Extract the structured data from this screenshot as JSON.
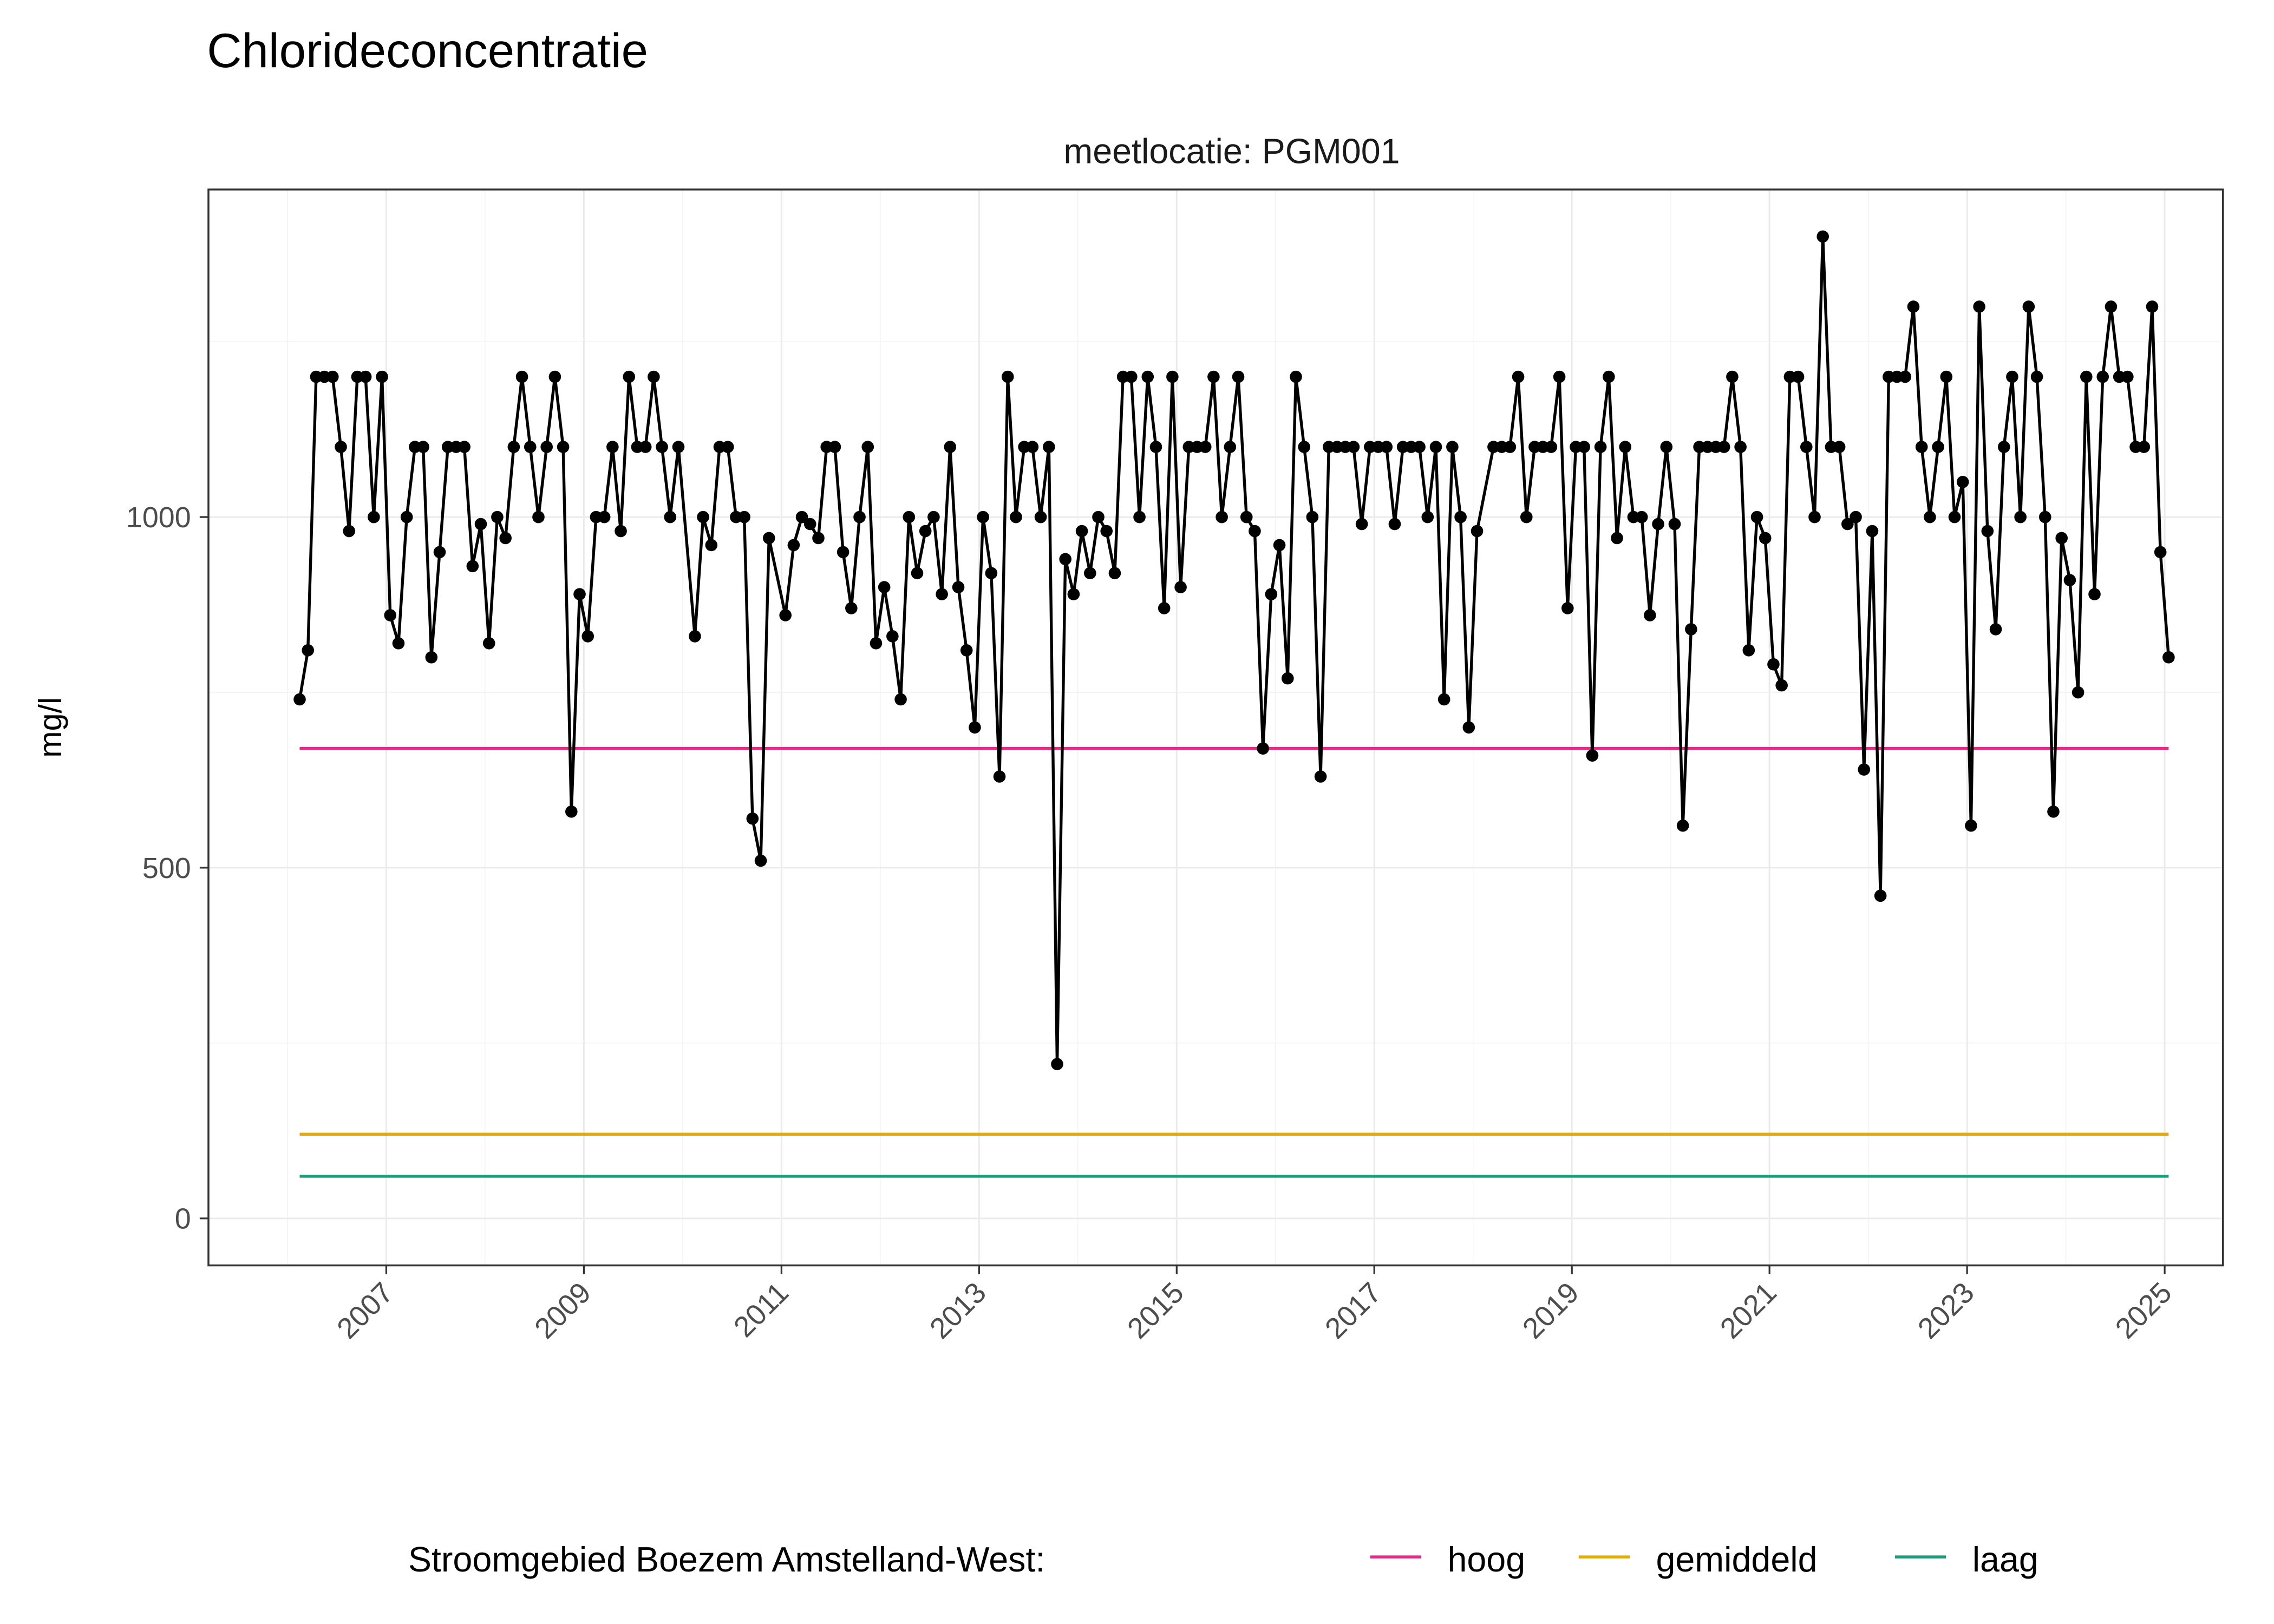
{
  "chart_data": {
    "type": "line",
    "title": "Chlorideconcentratie",
    "facet_label": "meetlocatie: PGM001",
    "xlabel": "",
    "ylabel": "mg/l",
    "x_ticks": [
      "2007",
      "2009",
      "2011",
      "2013",
      "2015",
      "2017",
      "2019",
      "2021",
      "2023",
      "2025"
    ],
    "y_ticks": [
      0,
      500,
      1000
    ],
    "ylim": [
      0,
      1400
    ],
    "xlim": [
      "2006-02",
      "2025-01"
    ],
    "grid": true,
    "legend": {
      "title": "Stroomgebied Boezem Amstelland-West:",
      "placement": "bottom",
      "entries": [
        {
          "label": "hoog",
          "value": 670,
          "color": "#E7298A"
        },
        {
          "label": "gemiddeld",
          "value": 120,
          "color": "#E6AB02"
        },
        {
          "label": "laag",
          "value": 60,
          "color": "#1B9E77"
        }
      ]
    },
    "series": [
      {
        "color": "#000000",
        "points": [
          [
            "2006-02",
            740
          ],
          [
            "2006-03",
            810
          ],
          [
            "2006-04",
            1200
          ],
          [
            "2006-05",
            1200
          ],
          [
            "2006-06",
            1200
          ],
          [
            "2006-07",
            1100
          ],
          [
            "2006-08",
            980
          ],
          [
            "2006-09",
            1200
          ],
          [
            "2006-10",
            1200
          ],
          [
            "2006-11",
            1000
          ],
          [
            "2006-12",
            1200
          ],
          [
            "2007-01",
            860
          ],
          [
            "2007-02",
            820
          ],
          [
            "2007-03",
            1000
          ],
          [
            "2007-04",
            1100
          ],
          [
            "2007-05",
            1100
          ],
          [
            "2007-06",
            800
          ],
          [
            "2007-07",
            950
          ],
          [
            "2007-08",
            1100
          ],
          [
            "2007-09",
            1100
          ],
          [
            "2007-10",
            1100
          ],
          [
            "2007-11",
            930
          ],
          [
            "2007-12",
            990
          ],
          [
            "2008-01",
            820
          ],
          [
            "2008-02",
            1000
          ],
          [
            "2008-03",
            970
          ],
          [
            "2008-04",
            1100
          ],
          [
            "2008-05",
            1200
          ],
          [
            "2008-06",
            1100
          ],
          [
            "2008-07",
            1000
          ],
          [
            "2008-08",
            1100
          ],
          [
            "2008-09",
            1200
          ],
          [
            "2008-10",
            1100
          ],
          [
            "2008-11",
            580
          ],
          [
            "2008-12",
            890
          ],
          [
            "2009-01",
            830
          ],
          [
            "2009-02",
            1000
          ],
          [
            "2009-03",
            1000
          ],
          [
            "2009-04",
            1100
          ],
          [
            "2009-05",
            980
          ],
          [
            "2009-06",
            1200
          ],
          [
            "2009-07",
            1100
          ],
          [
            "2009-08",
            1100
          ],
          [
            "2009-09",
            1200
          ],
          [
            "2009-10",
            1100
          ],
          [
            "2009-11",
            1000
          ],
          [
            "2009-12",
            1100
          ],
          [
            "2010-02",
            830
          ],
          [
            "2010-03",
            1000
          ],
          [
            "2010-04",
            960
          ],
          [
            "2010-05",
            1100
          ],
          [
            "2010-06",
            1100
          ],
          [
            "2010-07",
            1000
          ],
          [
            "2010-08",
            1000
          ],
          [
            "2010-09",
            570
          ],
          [
            "2010-10",
            510
          ],
          [
            "2010-11",
            970
          ],
          [
            "2011-01",
            860
          ],
          [
            "2011-02",
            960
          ],
          [
            "2011-03",
            1000
          ],
          [
            "2011-04",
            990
          ],
          [
            "2011-05",
            970
          ],
          [
            "2011-06",
            1100
          ],
          [
            "2011-07",
            1100
          ],
          [
            "2011-08",
            950
          ],
          [
            "2011-09",
            870
          ],
          [
            "2011-10",
            1000
          ],
          [
            "2011-11",
            1100
          ],
          [
            "2011-12",
            820
          ],
          [
            "2012-01",
            900
          ],
          [
            "2012-02",
            830
          ],
          [
            "2012-03",
            740
          ],
          [
            "2012-04",
            1000
          ],
          [
            "2012-05",
            920
          ],
          [
            "2012-06",
            980
          ],
          [
            "2012-07",
            1000
          ],
          [
            "2012-08",
            890
          ],
          [
            "2012-09",
            1100
          ],
          [
            "2012-10",
            900
          ],
          [
            "2012-11",
            810
          ],
          [
            "2012-12",
            700
          ],
          [
            "2013-01",
            1000
          ],
          [
            "2013-02",
            920
          ],
          [
            "2013-03",
            630
          ],
          [
            "2013-04",
            1200
          ],
          [
            "2013-05",
            1000
          ],
          [
            "2013-06",
            1100
          ],
          [
            "2013-07",
            1100
          ],
          [
            "2013-08",
            1000
          ],
          [
            "2013-09",
            1100
          ],
          [
            "2013-10",
            220
          ],
          [
            "2013-11",
            940
          ],
          [
            "2013-12",
            890
          ],
          [
            "2014-01",
            980
          ],
          [
            "2014-02",
            920
          ],
          [
            "2014-03",
            1000
          ],
          [
            "2014-04",
            980
          ],
          [
            "2014-05",
            920
          ],
          [
            "2014-06",
            1200
          ],
          [
            "2014-07",
            1200
          ],
          [
            "2014-08",
            1000
          ],
          [
            "2014-09",
            1200
          ],
          [
            "2014-10",
            1100
          ],
          [
            "2014-11",
            870
          ],
          [
            "2014-12",
            1200
          ],
          [
            "2015-01",
            900
          ],
          [
            "2015-02",
            1100
          ],
          [
            "2015-03",
            1100
          ],
          [
            "2015-04",
            1100
          ],
          [
            "2015-05",
            1200
          ],
          [
            "2015-06",
            1000
          ],
          [
            "2015-07",
            1100
          ],
          [
            "2015-08",
            1200
          ],
          [
            "2015-09",
            1000
          ],
          [
            "2015-10",
            980
          ],
          [
            "2015-11",
            670
          ],
          [
            "2015-12",
            890
          ],
          [
            "2016-01",
            960
          ],
          [
            "2016-02",
            770
          ],
          [
            "2016-03",
            1200
          ],
          [
            "2016-04",
            1100
          ],
          [
            "2016-05",
            1000
          ],
          [
            "2016-06",
            630
          ],
          [
            "2016-07",
            1100
          ],
          [
            "2016-08",
            1100
          ],
          [
            "2016-09",
            1100
          ],
          [
            "2016-10",
            1100
          ],
          [
            "2016-11",
            990
          ],
          [
            "2016-12",
            1100
          ],
          [
            "2017-01",
            1100
          ],
          [
            "2017-02",
            1100
          ],
          [
            "2017-03",
            990
          ],
          [
            "2017-04",
            1100
          ],
          [
            "2017-05",
            1100
          ],
          [
            "2017-06",
            1100
          ],
          [
            "2017-07",
            1000
          ],
          [
            "2017-08",
            1100
          ],
          [
            "2017-09",
            740
          ],
          [
            "2017-10",
            1100
          ],
          [
            "2017-11",
            1000
          ],
          [
            "2017-12",
            700
          ],
          [
            "2018-01",
            980
          ],
          [
            "2018-03",
            1100
          ],
          [
            "2018-04",
            1100
          ],
          [
            "2018-05",
            1100
          ],
          [
            "2018-06",
            1200
          ],
          [
            "2018-07",
            1000
          ],
          [
            "2018-08",
            1100
          ],
          [
            "2018-09",
            1100
          ],
          [
            "2018-10",
            1100
          ],
          [
            "2018-11",
            1200
          ],
          [
            "2018-12",
            870
          ],
          [
            "2019-01",
            1100
          ],
          [
            "2019-02",
            1100
          ],
          [
            "2019-03",
            660
          ],
          [
            "2019-04",
            1100
          ],
          [
            "2019-05",
            1200
          ],
          [
            "2019-06",
            970
          ],
          [
            "2019-07",
            1100
          ],
          [
            "2019-08",
            1000
          ],
          [
            "2019-09",
            1000
          ],
          [
            "2019-10",
            860
          ],
          [
            "2019-11",
            990
          ],
          [
            "2019-12",
            1100
          ],
          [
            "2020-01",
            990
          ],
          [
            "2020-02",
            560
          ],
          [
            "2020-03",
            840
          ],
          [
            "2020-04",
            1100
          ],
          [
            "2020-05",
            1100
          ],
          [
            "2020-06",
            1100
          ],
          [
            "2020-07",
            1100
          ],
          [
            "2020-08",
            1200
          ],
          [
            "2020-09",
            1100
          ],
          [
            "2020-10",
            810
          ],
          [
            "2020-11",
            1000
          ],
          [
            "2020-12",
            970
          ],
          [
            "2021-01",
            790
          ],
          [
            "2021-02",
            760
          ],
          [
            "2021-03",
            1200
          ],
          [
            "2021-04",
            1200
          ],
          [
            "2021-05",
            1100
          ],
          [
            "2021-06",
            1000
          ],
          [
            "2021-07",
            1400
          ],
          [
            "2021-08",
            1100
          ],
          [
            "2021-09",
            1100
          ],
          [
            "2021-10",
            990
          ],
          [
            "2021-11",
            1000
          ],
          [
            "2021-12",
            640
          ],
          [
            "2022-01",
            980
          ],
          [
            "2022-02",
            460
          ],
          [
            "2022-03",
            1200
          ],
          [
            "2022-04",
            1200
          ],
          [
            "2022-05",
            1200
          ],
          [
            "2022-06",
            1300
          ],
          [
            "2022-07",
            1100
          ],
          [
            "2022-08",
            1000
          ],
          [
            "2022-09",
            1100
          ],
          [
            "2022-10",
            1200
          ],
          [
            "2022-11",
            1000
          ],
          [
            "2022-12",
            1050
          ],
          [
            "2023-01",
            560
          ],
          [
            "2023-02",
            1300
          ],
          [
            "2023-03",
            980
          ],
          [
            "2023-04",
            840
          ],
          [
            "2023-05",
            1100
          ],
          [
            "2023-06",
            1200
          ],
          [
            "2023-07",
            1000
          ],
          [
            "2023-08",
            1300
          ],
          [
            "2023-09",
            1200
          ],
          [
            "2023-10",
            1000
          ],
          [
            "2023-11",
            580
          ],
          [
            "2023-12",
            970
          ],
          [
            "2024-01",
            910
          ],
          [
            "2024-02",
            750
          ],
          [
            "2024-03",
            1200
          ],
          [
            "2024-04",
            890
          ],
          [
            "2024-05",
            1200
          ],
          [
            "2024-06",
            1300
          ],
          [
            "2024-07",
            1200
          ],
          [
            "2024-08",
            1200
          ],
          [
            "2024-09",
            1100
          ],
          [
            "2024-10",
            1100
          ],
          [
            "2024-11",
            1300
          ],
          [
            "2024-12",
            950
          ],
          [
            "2025-01",
            800
          ]
        ]
      }
    ]
  }
}
